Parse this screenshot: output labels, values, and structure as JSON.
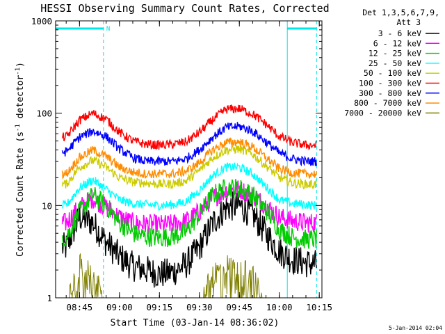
{
  "chart_data": {
    "type": "line",
    "title": "HESSI Observing Summary Count Rates, Corrected",
    "xlabel": "Start Time (03-Jan-14 08:36:02)",
    "ylabel_main": "Corrected Count Rate (s",
    "ylabel_sup1": "-1",
    "ylabel_mid": " detector",
    "ylabel_sup2": "-1",
    "ylabel_end": ")",
    "yscale": "log",
    "ylim": [
      1,
      1000
    ],
    "xlim": [
      "08:36:02",
      "10:16:00"
    ],
    "x_tick_labels": [
      "08:45",
      "09:00",
      "09:15",
      "09:30",
      "09:45",
      "10:00",
      "10:15"
    ],
    "y_tick_labels": [
      "1",
      "10",
      "100",
      "1000"
    ],
    "legend_header": [
      "Det 1,3,5,6,7,9,",
      "Att 3"
    ],
    "legend_position": "right",
    "footer_date": "5-Jan-2014 02:04",
    "annotation": "N",
    "night_intervals": [
      {
        "start": "08:36",
        "end": "08:54",
        "label": "N"
      },
      {
        "start": "10:03",
        "end": "10:14"
      }
    ],
    "x": [
      "08:40",
      "08:45",
      "08:50",
      "08:55",
      "09:00",
      "09:05",
      "09:10",
      "09:15",
      "09:20",
      "09:25",
      "09:30",
      "09:35",
      "09:40",
      "09:45",
      "09:50",
      "09:55",
      "10:00",
      "10:05",
      "10:10",
      "10:14"
    ],
    "series": [
      {
        "name": "3 - 6 keV",
        "color": "#000000",
        "values": [
          3.5,
          7.5,
          6.5,
          4,
          2.8,
          2.2,
          2.0,
          1.8,
          1.9,
          2.3,
          3.5,
          6.5,
          9.5,
          10,
          8,
          5,
          3.2,
          2.6,
          2.4,
          2.3
        ]
      },
      {
        "name": "6 - 12 keV",
        "color": "#ff00ff",
        "values": [
          6.5,
          9.5,
          12,
          9.5,
          7.5,
          6.5,
          6.3,
          6.2,
          6.3,
          6.8,
          8.5,
          12,
          14.5,
          15,
          13,
          10,
          7.5,
          6.8,
          6.5,
          6.5
        ]
      },
      {
        "name": "12 - 25 keV",
        "color": "#00cc00",
        "values": [
          4.5,
          8.5,
          13,
          10,
          6.5,
          5,
          4.6,
          4.5,
          4.6,
          5.2,
          8,
          13,
          15.5,
          15.5,
          13,
          9,
          5.5,
          4.5,
          4.3,
          4.3
        ]
      },
      {
        "name": "25 - 50 keV",
        "color": "#00ffff",
        "values": [
          10,
          15.5,
          19,
          15,
          11.5,
          10.5,
          10.2,
          10,
          10.2,
          11,
          14.5,
          21,
          26,
          26,
          22,
          16,
          11.5,
          10.5,
          10.2,
          10
        ]
      },
      {
        "name": "50 - 100 keV",
        "color": "#cccc00",
        "values": [
          17,
          26,
          31,
          26,
          20,
          18,
          17.5,
          17,
          17.2,
          18.5,
          24,
          33,
          40,
          41,
          36,
          27,
          20,
          17.5,
          17,
          17
        ]
      },
      {
        "name": "100 - 300 keV",
        "color": "#ff0000",
        "values": [
          55,
          84,
          100,
          86,
          62,
          50,
          46,
          45,
          46,
          49,
          62,
          85,
          110,
          112,
          98,
          76,
          56,
          48,
          45,
          45
        ]
      },
      {
        "name": "300 - 800 keV",
        "color": "#0000ff",
        "values": [
          38,
          55,
          64,
          56,
          41,
          33,
          30,
          30,
          30,
          32,
          40,
          55,
          70,
          72,
          64,
          49,
          37,
          32,
          30,
          30
        ]
      },
      {
        "name": "800 - 7000 keV",
        "color": "#ff8c00",
        "values": [
          22,
          33,
          40,
          34,
          26,
          23,
          22,
          22,
          22,
          23.5,
          29,
          40,
          48,
          49,
          43,
          33,
          25,
          22.5,
          22,
          22
        ]
      },
      {
        "name": "7000 - 20000 keV",
        "color": "#808000",
        "values": [
          1.0,
          2.8,
          2.4,
          1.0,
          1.0,
          1.0,
          1.0,
          1.0,
          1.0,
          1.0,
          1.0,
          2.3,
          2.8,
          2.6,
          2.2,
          1.0,
          1.0,
          1.0,
          1.0,
          1.0
        ]
      }
    ]
  }
}
